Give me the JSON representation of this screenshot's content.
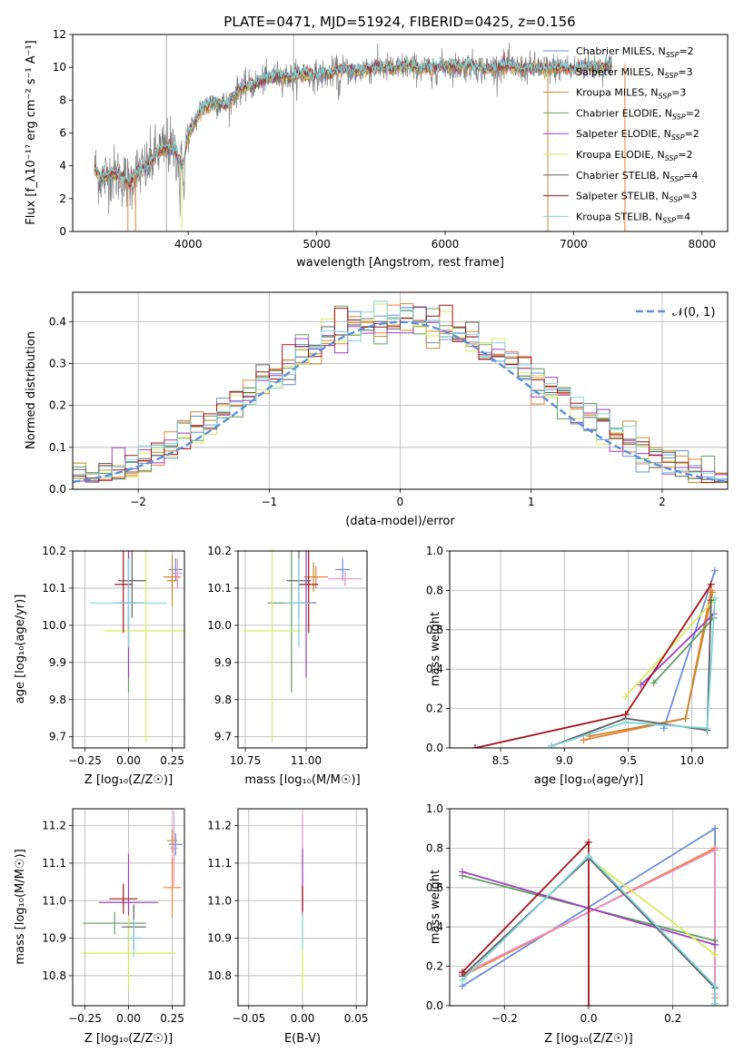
{
  "title": "PLATE=0471, MJD=51924, FIBERID=0425, z=0.156",
  "colors": [
    "#6a8fd8",
    "#ef7f33",
    "#c38a2d",
    "#5f9e5f",
    "#9e3fbf",
    "#d7ea5a",
    "#5f5f5f",
    "#a31418",
    "#7fd4dc",
    "#e88fc8"
  ],
  "chart_data": [
    {
      "id": "spectrum",
      "type": "line",
      "xlabel": "wavelength [Angstrom, rest frame]",
      "ylabel": "Flux [f_λ10⁻¹⁷ erg cm⁻² s⁻¹ A⁻¹]",
      "xlim": [
        3100,
        8200
      ],
      "ylim": [
        0,
        12
      ],
      "xticks": [
        4000,
        5000,
        6000,
        7000,
        8000
      ],
      "xtick_labels": [
        "4000",
        "5000",
        "6000",
        "7000",
        "8000"
      ],
      "yticks": [
        0,
        2,
        4,
        6,
        8,
        10,
        12
      ],
      "ytick_labels": [
        "0",
        "2",
        "4",
        "6",
        "8",
        "10",
        "12"
      ],
      "grid": false,
      "legend_position": "right",
      "data_color": "#808080",
      "data_points": [
        [
          3270,
          3.8
        ],
        [
          3330,
          3.2
        ],
        [
          3400,
          3.5
        ],
        [
          3470,
          3.4
        ],
        [
          3540,
          2.9
        ],
        [
          3600,
          3.6
        ],
        [
          3680,
          3.9
        ],
        [
          3760,
          4.8
        ],
        [
          3840,
          5.2
        ],
        [
          3900,
          4.9
        ],
        [
          3950,
          3.8
        ],
        [
          4000,
          5.8
        ],
        [
          4100,
          7.5
        ],
        [
          4200,
          7.9
        ],
        [
          4300,
          7.7
        ],
        [
          4400,
          8.7
        ],
        [
          4500,
          8.9
        ],
        [
          4600,
          9.3
        ],
        [
          4700,
          9.5
        ],
        [
          4800,
          9.4
        ],
        [
          4900,
          9.6
        ],
        [
          5000,
          9.5
        ],
        [
          5100,
          9.6
        ],
        [
          5200,
          9.9
        ],
        [
          5300,
          9.7
        ],
        [
          5400,
          9.9
        ],
        [
          5500,
          10.0
        ],
        [
          5600,
          9.9
        ],
        [
          5700,
          10.1
        ],
        [
          5800,
          9.9
        ],
        [
          5900,
          10.0
        ],
        [
          6000,
          10.1
        ],
        [
          6100,
          10.0
        ],
        [
          6200,
          10.1
        ],
        [
          6300,
          9.9
        ],
        [
          6400,
          10.0
        ],
        [
          6500,
          10.1
        ],
        [
          6600,
          9.9
        ],
        [
          6700,
          10.0
        ],
        [
          6800,
          9.9
        ],
        [
          6900,
          10.0
        ],
        [
          7000,
          9.9
        ],
        [
          7100,
          10.1
        ],
        [
          7200,
          10.0
        ],
        [
          7300,
          10.2
        ]
      ],
      "series": [
        {
          "name": "Chabrier MILES, N_SSP=2",
          "color": "#6a8fd8"
        },
        {
          "name": "Salpeter MILES, N_SSP=3",
          "color": "#ef7f33"
        },
        {
          "name": "Kroupa MILES, N_SSP=3",
          "color": "#c38a2d"
        },
        {
          "name": "Chabrier ELODIE, N_SSP=2",
          "color": "#5f9e5f"
        },
        {
          "name": "Salpeter ELODIE, N_SSP=2",
          "color": "#9e3fbf"
        },
        {
          "name": "Kroupa ELODIE, N_SSP=2",
          "color": "#d7ea5a"
        },
        {
          "name": "Chabrier STELIB, N_SSP=4",
          "color": "#5f5f5f"
        },
        {
          "name": "Salpeter STELIB, N_SSP=3",
          "color": "#a31418"
        },
        {
          "name": "Kroupa STELIB, N_SSP=4",
          "color": "#7fd4dc"
        }
      ],
      "vlines": [
        3830,
        4820
      ]
    },
    {
      "id": "residuals",
      "type": "histogram",
      "xlabel": "(data-model)/error",
      "ylabel": "Normed distribution",
      "xlim": [
        -2.5,
        2.5
      ],
      "ylim": [
        0,
        0.47
      ],
      "xticks": [
        -2,
        -1,
        0,
        1,
        2
      ],
      "xtick_labels": [
        "−2",
        "−1",
        "0",
        "1",
        "2"
      ],
      "yticks": [
        0,
        0.1,
        0.2,
        0.3,
        0.4
      ],
      "ytick_labels": [
        "0.0",
        "0.1",
        "0.2",
        "0.3",
        "0.4"
      ],
      "grid": true,
      "legend": {
        "name": "𝒩(0, 1)",
        "color": "#5b8fd9",
        "position": "top-right"
      },
      "bin_width": 0.1
    },
    {
      "id": "age-Z",
      "type": "errorbar",
      "xlabel": "Z [log₁₀(Z/Z☉)]",
      "ylabel": "age  [log₁₀(age/yr)]",
      "xlim": [
        -0.32,
        0.32
      ],
      "ylim": [
        9.67,
        10.2
      ],
      "xticks": [
        -0.25,
        0,
        0.25
      ],
      "xtick_labels": [
        "−0.25",
        "0.00",
        "0.25"
      ],
      "yticks": [
        9.7,
        9.8,
        9.9,
        10.0,
        10.1,
        10.2
      ],
      "ytick_labels": [
        "9.7",
        "9.8",
        "9.9",
        "10.0",
        "10.1",
        "10.2"
      ],
      "grid": true,
      "points": [
        {
          "x": 0.27,
          "y": 10.15,
          "xerr": 0.04,
          "yerr": 0.03,
          "color": "#6a8fd8"
        },
        {
          "x": 0.25,
          "y": 10.13,
          "xerr": 0.05,
          "yerr": 0.03,
          "color": "#ef7f33"
        },
        {
          "x": 0.25,
          "y": 10.12,
          "xerr": 0.03,
          "yerr": 0.07,
          "color": "#c38a2d"
        },
        {
          "x": 0.0,
          "y": 10.06,
          "xerr": 0.04,
          "yerr": 0.24,
          "color": "#5f9e5f"
        },
        {
          "x": 0.0,
          "y": 10.06,
          "xerr": 0.09,
          "yerr": 0.2,
          "color": "#9e3fbf"
        },
        {
          "x": 0.1,
          "y": 9.985,
          "xerr": 0.24,
          "yerr": 0.3,
          "color": "#d7ea5a"
        },
        {
          "x": 0.02,
          "y": 10.12,
          "xerr": 0.08,
          "yerr": 0.1,
          "color": "#5f5f5f"
        },
        {
          "x": -0.03,
          "y": 10.11,
          "xerr": 0.05,
          "yerr": 0.13,
          "color": "#a31418"
        },
        {
          "x": 0.0,
          "y": 10.06,
          "xerr": 0.22,
          "yerr": 0.12,
          "color": "#7fd4dc"
        },
        {
          "x": 0.28,
          "y": 10.14,
          "xerr": 0.03,
          "yerr": 0.04,
          "color": "#e88fc8"
        }
      ]
    },
    {
      "id": "age-mass",
      "type": "errorbar",
      "xlabel": "mass [log₁₀(M/M☉)]",
      "ylabel": "",
      "xlim": [
        10.72,
        11.25
      ],
      "ylim": [
        9.67,
        10.2
      ],
      "xticks": [
        10.75,
        11.0
      ],
      "xtick_labels": [
        "10.75",
        "11.00"
      ],
      "yticks": [
        9.7,
        9.8,
        9.9,
        10.0,
        10.1,
        10.2
      ],
      "ytick_labels": [
        "9.7",
        "9.8",
        "9.9",
        "10.0",
        "10.1",
        "10.2"
      ],
      "grid": true,
      "points": [
        {
          "x": 11.15,
          "y": 10.15,
          "xerr": 0.03,
          "yerr": 0.03,
          "color": "#6a8fd8"
        },
        {
          "x": 11.04,
          "y": 10.13,
          "xerr": 0.05,
          "yerr": 0.03,
          "color": "#ef7f33"
        },
        {
          "x": 11.03,
          "y": 10.13,
          "xerr": 0.02,
          "yerr": 0.04,
          "color": "#c38a2d"
        },
        {
          "x": 10.94,
          "y": 10.06,
          "xerr": 0.1,
          "yerr": 0.24,
          "color": "#5f9e5f"
        },
        {
          "x": 11.0,
          "y": 10.06,
          "xerr": 0.04,
          "yerr": 0.2,
          "color": "#9e3fbf"
        },
        {
          "x": 10.86,
          "y": 9.985,
          "xerr": 0.12,
          "yerr": 0.3,
          "color": "#d7ea5a"
        },
        {
          "x": 10.97,
          "y": 10.12,
          "xerr": 0.05,
          "yerr": 0.1,
          "color": "#5f5f5f"
        },
        {
          "x": 11.01,
          "y": 10.11,
          "xerr": 0.04,
          "yerr": 0.13,
          "color": "#a31418"
        },
        {
          "x": 10.97,
          "y": 10.06,
          "xerr": 0.06,
          "yerr": 0.12,
          "color": "#7fd4dc"
        },
        {
          "x": 11.16,
          "y": 10.125,
          "xerr": 0.07,
          "yerr": 0.02,
          "color": "#e88fc8"
        }
      ]
    },
    {
      "id": "weight-age",
      "type": "line",
      "xlabel": "age  [log₁₀(age/yr)]",
      "ylabel": "mass weight",
      "xlim": [
        8.1,
        10.28
      ],
      "ylim": [
        0,
        1.0
      ],
      "xticks": [
        8.5,
        9.0,
        9.5,
        10.0
      ],
      "xtick_labels": [
        "8.5",
        "9.0",
        "9.5",
        "10.0"
      ],
      "yticks": [
        0,
        0.2,
        0.4,
        0.6,
        0.8,
        1.0
      ],
      "ytick_labels": [
        "0.0",
        "0.2",
        "0.4",
        "0.6",
        "0.8",
        "1.0"
      ],
      "grid": true,
      "series": [
        {
          "color": "#6a8fd8",
          "x": [
            9.78,
            10.18
          ],
          "y": [
            0.1,
            0.9
          ]
        },
        {
          "color": "#ef7f33",
          "x": [
            9.15,
            9.95,
            10.15
          ],
          "y": [
            0.04,
            0.15,
            0.8
          ]
        },
        {
          "color": "#c38a2d",
          "x": [
            9.2,
            9.95,
            10.16
          ],
          "y": [
            0.06,
            0.15,
            0.79
          ]
        },
        {
          "color": "#5f9e5f",
          "x": [
            9.7,
            10.17
          ],
          "y": [
            0.33,
            0.66
          ]
        },
        {
          "color": "#9e3fbf",
          "x": [
            9.6,
            10.17
          ],
          "y": [
            0.32,
            0.68
          ]
        },
        {
          "color": "#d7ea5a",
          "x": [
            9.48,
            10.17
          ],
          "y": [
            0.26,
            0.75
          ]
        },
        {
          "color": "#5f5f5f",
          "x": [
            8.9,
            9.48,
            10.12,
            10.15
          ],
          "y": [
            0.01,
            0.15,
            0.09,
            0.75
          ]
        },
        {
          "color": "#a31418",
          "x": [
            8.3,
            9.48,
            10.15
          ],
          "y": [
            0.0,
            0.17,
            0.83
          ]
        },
        {
          "color": "#7fd4dc",
          "x": [
            8.9,
            9.48,
            10.12,
            10.18
          ],
          "y": [
            0.01,
            0.13,
            0.1,
            0.76
          ]
        }
      ]
    },
    {
      "id": "mass-Z",
      "type": "errorbar",
      "xlabel": "Z [log₁₀(Z/Z☉)]",
      "ylabel": "mass [log₁₀(M/M☉)]",
      "xlim": [
        -0.32,
        0.32
      ],
      "ylim": [
        10.72,
        11.245
      ],
      "xticks": [
        -0.25,
        0,
        0.25
      ],
      "xtick_labels": [
        "−0.25",
        "0.00",
        "0.25"
      ],
      "yticks": [
        10.8,
        10.9,
        11.0,
        11.1,
        11.2
      ],
      "ytick_labels": [
        "10.8",
        "10.9",
        "11.0",
        "11.1",
        "11.2"
      ],
      "grid": true,
      "points": [
        {
          "x": 0.27,
          "y": 11.15,
          "xerr": 0.04,
          "yerr": 0.03,
          "color": "#6a8fd8"
        },
        {
          "x": 0.25,
          "y": 11.035,
          "xerr": 0.05,
          "yerr": 0.08,
          "color": "#ef7f33"
        },
        {
          "x": 0.25,
          "y": 11.16,
          "xerr": 0.03,
          "yerr": 0.03,
          "color": "#c38a2d"
        },
        {
          "x": -0.08,
          "y": 10.94,
          "xerr": 0.18,
          "yerr": 0.03,
          "color": "#5f9e5f"
        },
        {
          "x": 0.0,
          "y": 10.995,
          "xerr": 0.17,
          "yerr": 0.13,
          "color": "#9e3fbf"
        },
        {
          "x": 0.0,
          "y": 10.86,
          "xerr": 0.27,
          "yerr": 0.1,
          "color": "#d7ea5a"
        },
        {
          "x": 0.03,
          "y": 10.93,
          "xerr": 0.07,
          "yerr": 0.06,
          "color": "#5f5f5f"
        },
        {
          "x": -0.03,
          "y": 11.005,
          "xerr": 0.08,
          "yerr": 0.04,
          "color": "#a31418"
        },
        {
          "x": 0.03,
          "y": 10.9,
          "xerr": 0.05,
          "yerr": 0.05,
          "color": "#7fd4dc"
        },
        {
          "x": 0.26,
          "y": 11.14,
          "xerr": 0.02,
          "yerr": 0.1,
          "color": "#e88fc8"
        }
      ]
    },
    {
      "id": "mass-EBV",
      "type": "errorbar",
      "xlabel": "E(B-V)",
      "ylabel": "",
      "xlim": [
        -0.06,
        0.06
      ],
      "ylim": [
        10.72,
        11.245
      ],
      "xticks": [
        -0.05,
        0,
        0.05
      ],
      "xtick_labels": [
        "−0.05",
        "0.00",
        "0.05"
      ],
      "yticks": [
        10.8,
        10.9,
        11.0,
        11.1,
        11.2
      ],
      "ytick_labels": [
        "10.8",
        "10.9",
        "11.0",
        "11.1",
        "11.2"
      ],
      "grid": true,
      "points": [
        {
          "x": 0.0,
          "y": 11.1,
          "xerr": 0,
          "yerr": 0.13,
          "color": "#e88fc8"
        },
        {
          "x": 0.0,
          "y": 11.05,
          "xerr": 0,
          "yerr": 0.09,
          "color": "#9e3fbf"
        },
        {
          "x": 0.0,
          "y": 11.0,
          "xerr": 0,
          "yerr": 0.04,
          "color": "#a31418"
        },
        {
          "x": 0.0,
          "y": 10.86,
          "xerr": 0,
          "yerr": 0.1,
          "color": "#d7ea5a"
        },
        {
          "x": 0.0,
          "y": 10.92,
          "xerr": 0,
          "yerr": 0.05,
          "color": "#7fd4dc"
        }
      ]
    },
    {
      "id": "weight-Z",
      "type": "line",
      "xlabel": "Z [log₁₀(Z/Z☉)]",
      "ylabel": "mass weight",
      "xlim": [
        -0.33,
        0.33
      ],
      "ylim": [
        0,
        1.0
      ],
      "xticks": [
        -0.2,
        0,
        0.2
      ],
      "xtick_labels": [
        "−0.2",
        "0.0",
        "0.2"
      ],
      "yticks": [
        0,
        0.2,
        0.4,
        0.6,
        0.8,
        1.0
      ],
      "ytick_labels": [
        "0.0",
        "0.2",
        "0.4",
        "0.6",
        "0.8",
        "1.0"
      ],
      "grid": true,
      "series": [
        {
          "color": "#6a8fd8",
          "x": [
            -0.3,
            0.3,
            0.3
          ],
          "y": [
            0.1,
            0.9,
            0.0
          ]
        },
        {
          "color": "#ef7f33",
          "x": [
            -0.3,
            0.3,
            0.3
          ],
          "y": [
            0.15,
            0.8,
            0.04
          ]
        },
        {
          "color": "#e88fc8",
          "x": [
            -0.3,
            0.3,
            0.3
          ],
          "y": [
            0.16,
            0.79,
            0.06
          ]
        },
        {
          "color": "#5f9e5f",
          "x": [
            -0.3,
            0.3
          ],
          "y": [
            0.66,
            0.33
          ]
        },
        {
          "color": "#9e3fbf",
          "x": [
            -0.3,
            0.3
          ],
          "y": [
            0.68,
            0.31
          ]
        },
        {
          "color": "#d7ea5a",
          "x": [
            0.0,
            0.3
          ],
          "y": [
            0.75,
            0.26
          ]
        },
        {
          "color": "#5f5f5f",
          "x": [
            -0.3,
            0.0,
            0.3,
            0.3
          ],
          "y": [
            0.15,
            0.75,
            0.09,
            0.01
          ]
        },
        {
          "color": "#a31418",
          "x": [
            -0.3,
            0.0,
            0.0
          ],
          "y": [
            0.17,
            0.83,
            0.0
          ]
        },
        {
          "color": "#7fd4dc",
          "x": [
            -0.3,
            0.0,
            0.3,
            0.3
          ],
          "y": [
            0.13,
            0.76,
            0.1,
            0.01
          ]
        }
      ]
    }
  ]
}
